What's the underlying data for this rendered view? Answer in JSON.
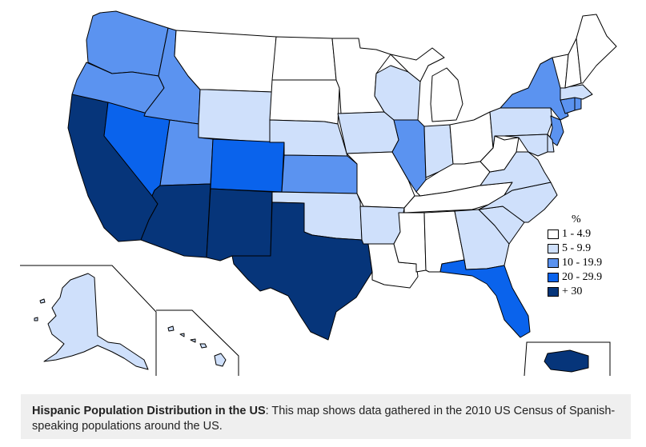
{
  "map": {
    "colors": {
      "c1": "#ffffff",
      "c2": "#cfe0fb",
      "c3": "#5b93f0",
      "c4": "#0a63ec",
      "c5": "#06357a"
    },
    "states": {
      "WA": "c3",
      "OR": "c3",
      "CA": "c5",
      "NV": "c4",
      "ID": "c3",
      "MT": "c1",
      "WY": "c2",
      "UT": "c3",
      "AZ": "c5",
      "CO": "c4",
      "NM": "c5",
      "ND": "c1",
      "SD": "c1",
      "NE": "c2",
      "KS": "c3",
      "OK": "c2",
      "TX": "c5",
      "MN": "c1",
      "IA": "c2",
      "MO": "c1",
      "AR": "c2",
      "LA": "c1",
      "WI": "c2",
      "IL": "c3",
      "MI": "c1",
      "IN": "c2",
      "OH": "c1",
      "KY": "c1",
      "TN": "c1",
      "MS": "c1",
      "AL": "c1",
      "GA": "c2",
      "FL": "c4",
      "SC": "c2",
      "NC": "c2",
      "VA": "c2",
      "WV": "c1",
      "PA": "c2",
      "NY": "c3",
      "NJ": "c3",
      "DE": "c2",
      "MD": "c2",
      "CT": "c3",
      "RI": "c3",
      "MA": "c2",
      "VT": "c1",
      "NH": "c1",
      "ME": "c1",
      "AK": "c2",
      "HI": "c2",
      "PR": "c5"
    }
  },
  "legend": {
    "title": "%",
    "items": [
      {
        "label": "1 - 4.9",
        "color": "#ffffff"
      },
      {
        "label": "5 - 9.9",
        "color": "#cfe0fb"
      },
      {
        "label": "10 - 19.9",
        "color": "#5b93f0"
      },
      {
        "label": "20 - 29.9",
        "color": "#0a63ec"
      },
      {
        "label": "+ 30",
        "color": "#06357a"
      }
    ]
  },
  "caption": {
    "title": "Hispanic Population Distribution in the US",
    "text": ": This map shows data gathered in the 2010 US Census of Spanish-speaking populations around the US."
  }
}
